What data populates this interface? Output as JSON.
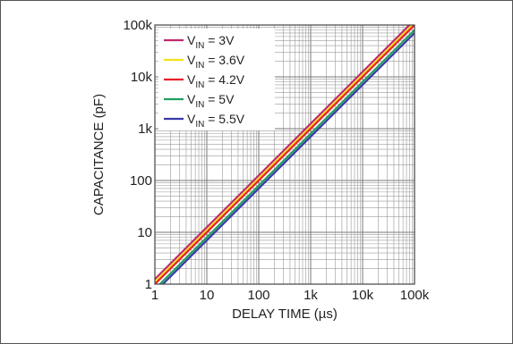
{
  "chart_data": {
    "type": "line",
    "xlabel": "DELAY TIME (µs)",
    "ylabel": "CAPACITANCE (pF)",
    "x_scale": "log",
    "y_scale": "log",
    "xlim": [
      1,
      100000
    ],
    "ylim": [
      1,
      100000
    ],
    "x_ticks": [
      1,
      10,
      100,
      1000,
      10000,
      100000
    ],
    "x_tick_labels": [
      "1",
      "10",
      "100",
      "1k",
      "10k",
      "100k"
    ],
    "y_ticks": [
      1,
      10,
      100,
      1000,
      10000,
      100000
    ],
    "y_tick_labels": [
      "1",
      "10",
      "100",
      "1k",
      "10k",
      "100k"
    ],
    "grid": true,
    "legend_position": "top-left",
    "series": [
      {
        "name_main": "V",
        "name_sub": "IN",
        "name_rest": " = 3V",
        "color": "#c0286e",
        "x": [
          1,
          100000
        ],
        "y": [
          1.25,
          125000
        ]
      },
      {
        "name_main": "V",
        "name_sub": "IN",
        "name_rest": " = 3.6V",
        "color": "#f2e21a",
        "x": [
          1,
          100000
        ],
        "y": [
          1.1,
          110000
        ]
      },
      {
        "name_main": "V",
        "name_sub": "IN",
        "name_rest": " = 4.2V",
        "color": "#e8202a",
        "x": [
          1,
          100000
        ],
        "y": [
          1.0,
          100000
        ]
      },
      {
        "name_main": "V",
        "name_sub": "IN",
        "name_rest": " = 5V",
        "color": "#1fa060",
        "x": [
          1,
          100000
        ],
        "y": [
          0.8,
          80000
        ]
      },
      {
        "name_main": "V",
        "name_sub": "IN",
        "name_rest": " = 5.5V",
        "color": "#3a3aa8",
        "x": [
          1,
          100000
        ],
        "y": [
          0.7,
          70000
        ]
      }
    ]
  }
}
